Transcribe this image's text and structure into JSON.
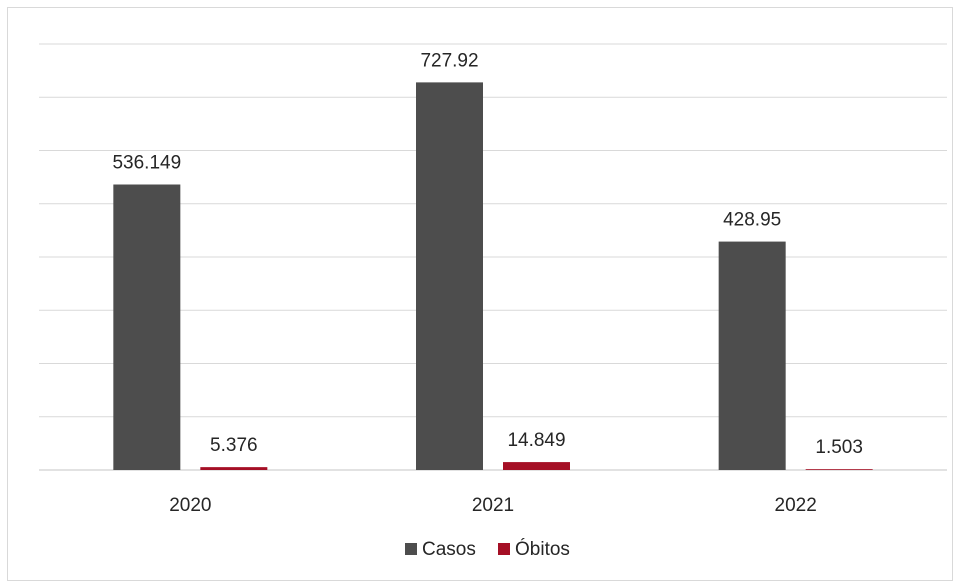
{
  "chart_data": {
    "type": "bar",
    "title": "",
    "xlabel": "",
    "ylabel": "",
    "categories": [
      "2020",
      "2021",
      "2022"
    ],
    "series": [
      {
        "name": "Casos",
        "values": [
          536149,
          727920,
          428950
        ],
        "labels": [
          "536.149",
          "727.92",
          "428.95"
        ],
        "color": "#4d4d4d"
      },
      {
        "name": "Óbitos",
        "values": [
          5376,
          14849,
          1503
        ],
        "labels": [
          "5.376",
          "14.849",
          "1.503"
        ],
        "color": "#a50f25"
      }
    ],
    "ylim": [
      0,
      800000
    ],
    "grid": true,
    "legend_position": "bottom"
  }
}
